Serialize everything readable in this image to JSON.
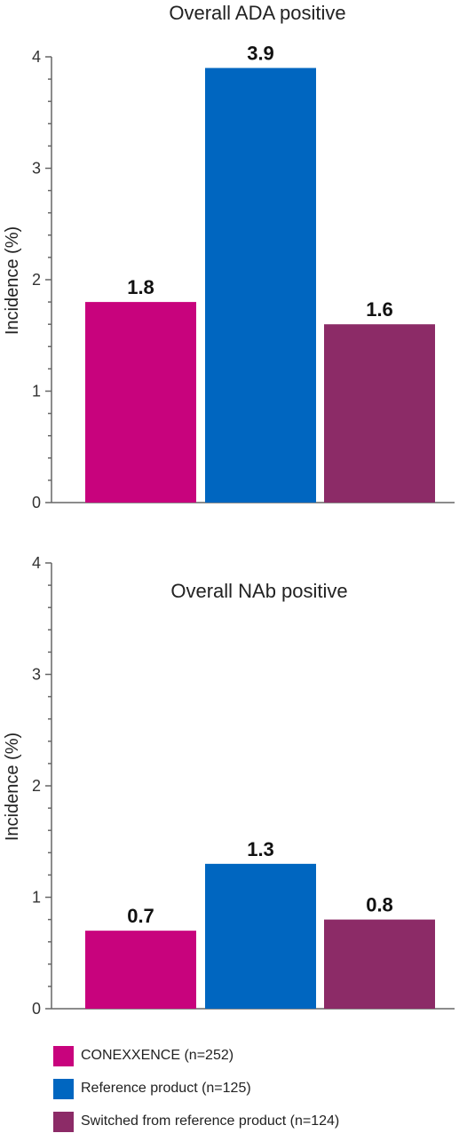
{
  "chart_data": [
    {
      "type": "bar",
      "title": "Overall ADA positive",
      "ylabel": "Incidence (%)",
      "ylim": [
        0,
        4
      ],
      "yticks": [
        "0",
        "1",
        "2",
        "3",
        "4"
      ],
      "categories": [
        "CONEXXENCE (n=252)",
        "Reference product (n=125)",
        "Switched from reference product (n=124)"
      ],
      "values": [
        1.8,
        3.9,
        1.6
      ],
      "value_labels": [
        "1.8",
        "3.9",
        "1.6"
      ],
      "colors": [
        "#C8037D",
        "#0066C0",
        "#8C2B67"
      ],
      "grid": false
    },
    {
      "type": "bar",
      "title": "Overall NAb positive",
      "ylabel": "Incidence (%)",
      "ylim": [
        0,
        4
      ],
      "yticks": [
        "0",
        "1",
        "2",
        "3",
        "4"
      ],
      "categories": [
        "CONEXXENCE (n=252)",
        "Reference product (n=125)",
        "Switched from reference product (n=124)"
      ],
      "values": [
        0.7,
        1.3,
        0.8
      ],
      "value_labels": [
        "0.7",
        "1.3",
        "0.8"
      ],
      "colors": [
        "#C8037D",
        "#0066C0",
        "#8C2B67"
      ],
      "grid": false
    }
  ],
  "legend": {
    "placement": "bottom",
    "items": [
      {
        "label": "CONEXXENCE (n=252)",
        "color": "#C8037D"
      },
      {
        "label": "Reference product (n=125)",
        "color": "#0066C0"
      },
      {
        "label": "Switched from reference product (n=124)",
        "color": "#8C2B67"
      }
    ]
  }
}
